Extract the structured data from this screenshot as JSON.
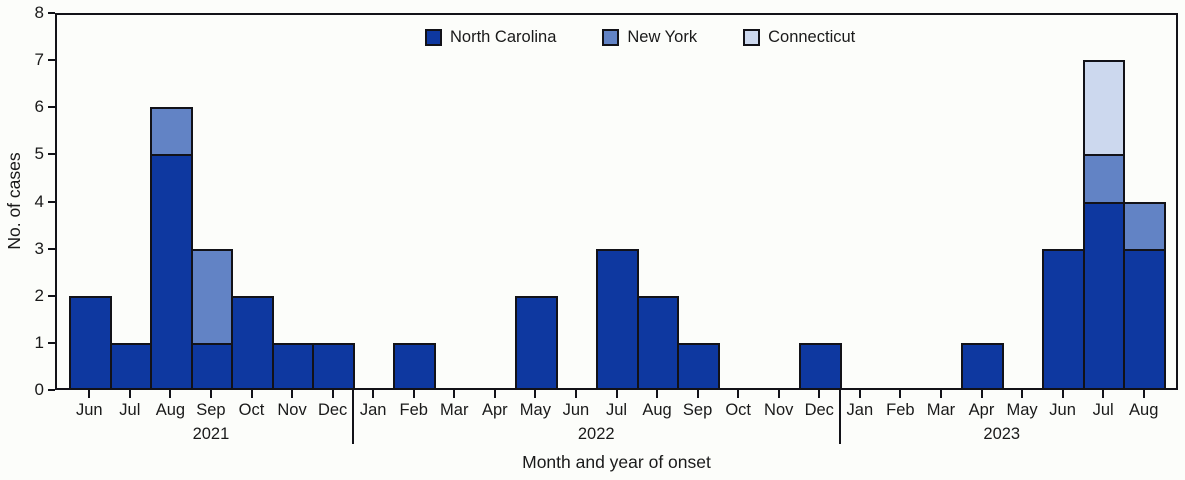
{
  "colors": {
    "axis": "#121218",
    "background": "#fcfdfa"
  },
  "chart_data": {
    "type": "bar",
    "stacked": true,
    "title": "",
    "xlabel": "Month and year of onset",
    "ylabel": "No. of cases",
    "ylim": [
      0,
      8
    ],
    "yticks": [
      0,
      1,
      2,
      3,
      4,
      5,
      6,
      7,
      8
    ],
    "grid": false,
    "legend_position": "top-center",
    "categories": [
      "Jun",
      "Jul",
      "Aug",
      "Sep",
      "Oct",
      "Nov",
      "Dec",
      "Jan",
      "Feb",
      "Mar",
      "Apr",
      "May",
      "Jun",
      "Jul",
      "Aug",
      "Sep",
      "Oct",
      "Nov",
      "Dec",
      "Jan",
      "Feb",
      "Mar",
      "Apr",
      "May",
      "Jun",
      "Jul",
      "Aug"
    ],
    "year_groups": [
      {
        "label": "2021",
        "start": 0,
        "count": 7
      },
      {
        "label": "2022",
        "start": 7,
        "count": 12
      },
      {
        "label": "2023",
        "start": 19,
        "count": 8
      }
    ],
    "series": [
      {
        "name": "North Carolina",
        "color": "#0e38a0",
        "values": [
          2,
          1,
          5,
          1,
          2,
          1,
          1,
          0,
          1,
          0,
          0,
          2,
          0,
          3,
          2,
          1,
          0,
          0,
          1,
          0,
          0,
          0,
          1,
          0,
          3,
          4,
          3
        ]
      },
      {
        "name": "New York",
        "color": "#6283c5",
        "values": [
          0,
          0,
          1,
          2,
          0,
          0,
          0,
          0,
          0,
          0,
          0,
          0,
          0,
          0,
          0,
          0,
          0,
          0,
          0,
          0,
          0,
          0,
          0,
          0,
          0,
          1,
          1
        ]
      },
      {
        "name": "Connecticut",
        "color": "#ccd8ee",
        "values": [
          0,
          0,
          0,
          0,
          0,
          0,
          0,
          0,
          0,
          0,
          0,
          0,
          0,
          0,
          0,
          0,
          0,
          0,
          0,
          0,
          0,
          0,
          0,
          0,
          0,
          2,
          0
        ]
      }
    ]
  }
}
